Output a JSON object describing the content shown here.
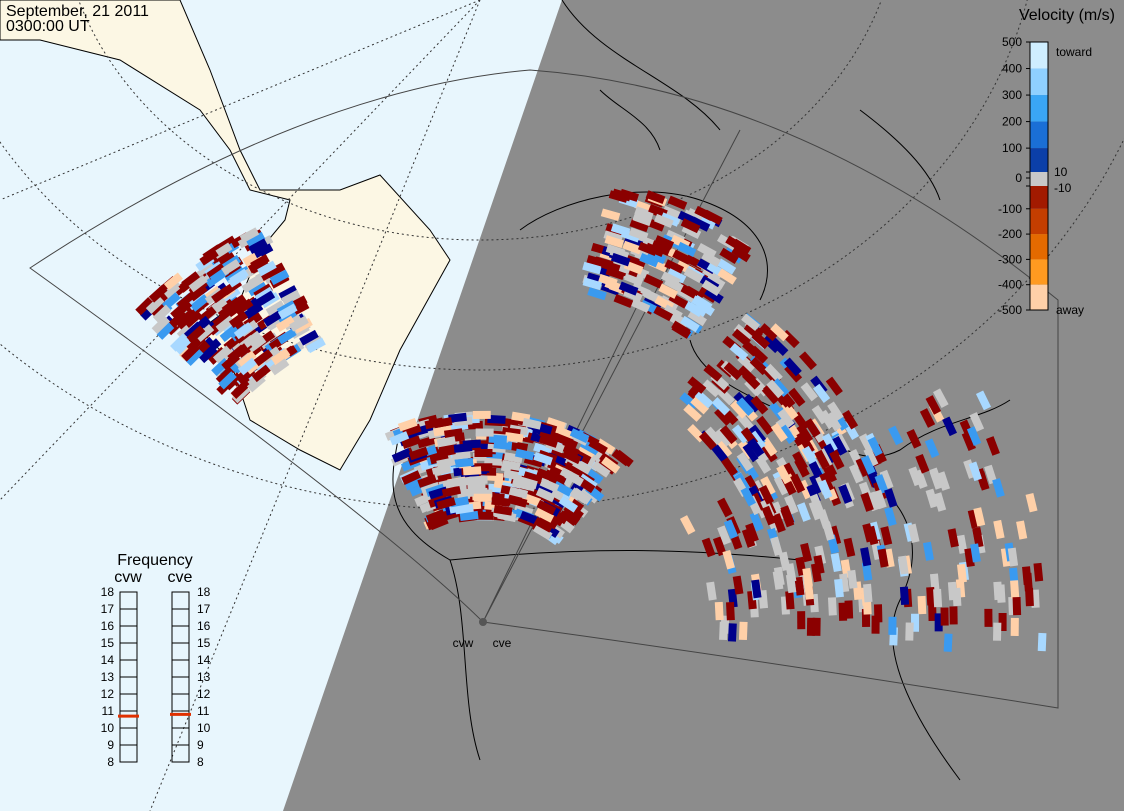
{
  "header": {
    "date": "September, 21 2011",
    "time": "0300:00 UT"
  },
  "velocity_scale": {
    "title": "Velocity (m/s)",
    "ticks": [
      500,
      400,
      300,
      200,
      100,
      10,
      0,
      -10,
      -100,
      -200,
      -300,
      -400,
      -500
    ],
    "toward_label": "toward",
    "away_label": "away"
  },
  "frequency_panel": {
    "title": "Frequency",
    "ticks": [
      18,
      17,
      16,
      15,
      14,
      13,
      12,
      11,
      10,
      9,
      8
    ],
    "radars": [
      {
        "name": "cvw",
        "frequency": 10.7
      },
      {
        "name": "cve",
        "frequency": 10.8
      }
    ]
  },
  "radar_sites": [
    {
      "name": "cvw"
    },
    {
      "name": "cve"
    }
  ]
}
